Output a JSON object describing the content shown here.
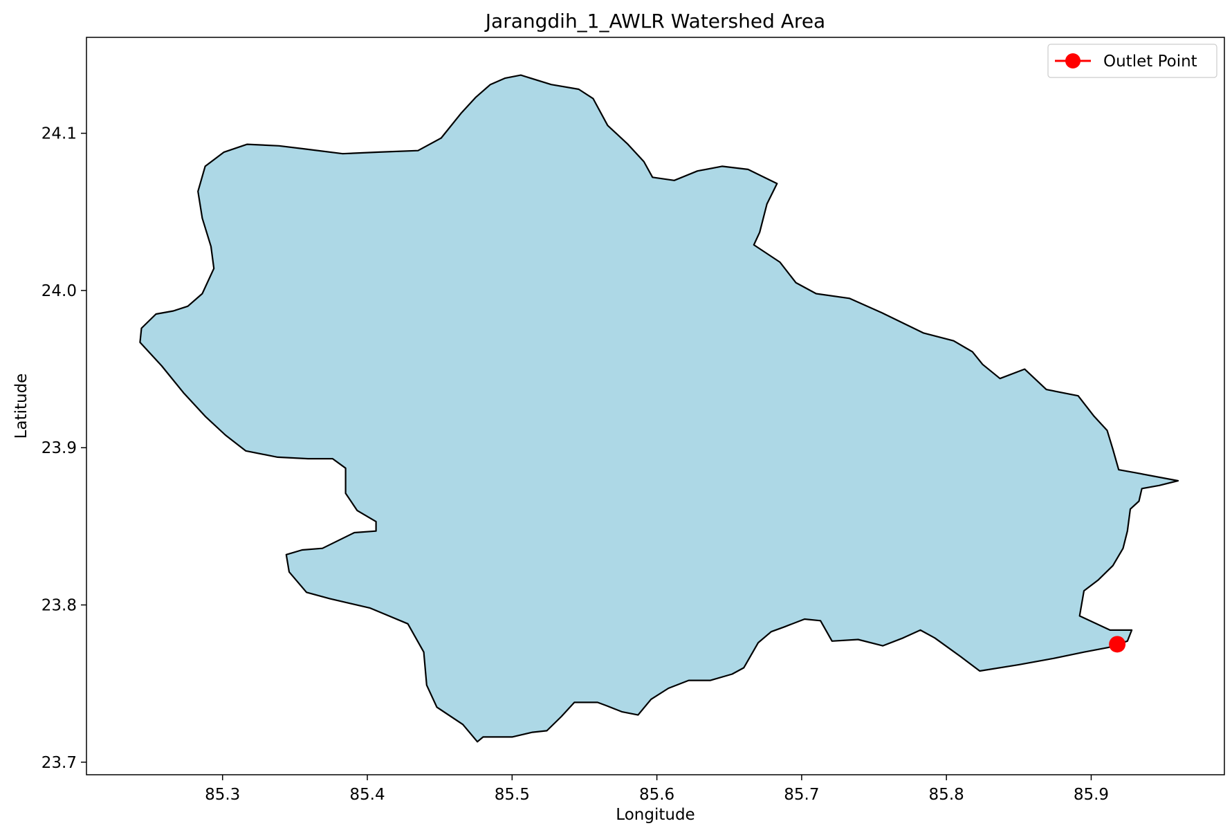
{
  "chart_data": {
    "type": "map",
    "title": "Jarangdih_1_AWLR Watershed Area",
    "xlabel": "Longitude",
    "ylabel": "Latitude",
    "xlim": [
      85.206,
      85.992
    ],
    "ylim": [
      23.692,
      24.161
    ],
    "xticks": [
      85.3,
      85.4,
      85.5,
      85.6,
      85.7,
      85.8,
      85.9
    ],
    "xtick_labels": [
      "85.3",
      "85.4",
      "85.5",
      "85.6",
      "85.7",
      "85.8",
      "85.9"
    ],
    "yticks": [
      23.7,
      23.8,
      23.9,
      24.0,
      24.1
    ],
    "ytick_labels": [
      "23.7",
      "23.8",
      "23.9",
      "24.0",
      "24.1"
    ],
    "grid": false,
    "legend_position": "top-right",
    "colors": {
      "watershed_fill": "#add8e6",
      "watershed_edge": "#000000",
      "outlet": "#ff0000"
    },
    "legend": [
      {
        "label": "Outlet Point",
        "marker": "circle",
        "color": "#ff0000"
      }
    ],
    "outlet_point": {
      "name": "Outlet Point",
      "lon": 85.918,
      "lat": 23.775
    },
    "watershed_boundary": [
      [
        85.506,
        24.137
      ],
      [
        85.527,
        24.131
      ],
      [
        85.546,
        24.128
      ],
      [
        85.556,
        24.122
      ],
      [
        85.566,
        24.105
      ],
      [
        85.58,
        24.093
      ],
      [
        85.591,
        24.082
      ],
      [
        85.597,
        24.072
      ],
      [
        85.612,
        24.07
      ],
      [
        85.628,
        24.076
      ],
      [
        85.645,
        24.079
      ],
      [
        85.663,
        24.077
      ],
      [
        85.683,
        24.068
      ],
      [
        85.676,
        24.055
      ],
      [
        85.671,
        24.037
      ],
      [
        85.667,
        24.029
      ],
      [
        85.685,
        24.018
      ],
      [
        85.696,
        24.005
      ],
      [
        85.71,
        23.998
      ],
      [
        85.733,
        23.995
      ],
      [
        85.755,
        23.986
      ],
      [
        85.784,
        23.973
      ],
      [
        85.805,
        23.968
      ],
      [
        85.818,
        23.961
      ],
      [
        85.825,
        23.953
      ],
      [
        85.837,
        23.944
      ],
      [
        85.854,
        23.95
      ],
      [
        85.869,
        23.937
      ],
      [
        85.891,
        23.933
      ],
      [
        85.902,
        23.92
      ],
      [
        85.911,
        23.911
      ],
      [
        85.915,
        23.899
      ],
      [
        85.919,
        23.886
      ],
      [
        85.931,
        23.884
      ],
      [
        85.96,
        23.879
      ],
      [
        85.947,
        23.876
      ],
      [
        85.935,
        23.874
      ],
      [
        85.933,
        23.866
      ],
      [
        85.927,
        23.861
      ],
      [
        85.925,
        23.847
      ],
      [
        85.922,
        23.836
      ],
      [
        85.915,
        23.825
      ],
      [
        85.905,
        23.816
      ],
      [
        85.895,
        23.809
      ],
      [
        85.892,
        23.793
      ],
      [
        85.913,
        23.784
      ],
      [
        85.928,
        23.784
      ],
      [
        85.925,
        23.777
      ],
      [
        85.912,
        23.773
      ],
      [
        85.895,
        23.77
      ],
      [
        85.874,
        23.766
      ],
      [
        85.85,
        23.762
      ],
      [
        85.823,
        23.758
      ],
      [
        85.81,
        23.767
      ],
      [
        85.792,
        23.779
      ],
      [
        85.782,
        23.784
      ],
      [
        85.77,
        23.779
      ],
      [
        85.756,
        23.774
      ],
      [
        85.739,
        23.778
      ],
      [
        85.721,
        23.777
      ],
      [
        85.713,
        23.79
      ],
      [
        85.702,
        23.791
      ],
      [
        85.688,
        23.786
      ],
      [
        85.679,
        23.783
      ],
      [
        85.67,
        23.776
      ],
      [
        85.66,
        23.76
      ],
      [
        85.652,
        23.756
      ],
      [
        85.637,
        23.752
      ],
      [
        85.622,
        23.752
      ],
      [
        85.608,
        23.747
      ],
      [
        85.596,
        23.74
      ],
      [
        85.587,
        23.73
      ],
      [
        85.576,
        23.732
      ],
      [
        85.565,
        23.736
      ],
      [
        85.559,
        23.738
      ],
      [
        85.543,
        23.738
      ],
      [
        85.534,
        23.729
      ],
      [
        85.524,
        23.72
      ],
      [
        85.514,
        23.719
      ],
      [
        85.5,
        23.716
      ],
      [
        85.489,
        23.716
      ],
      [
        85.48,
        23.716
      ],
      [
        85.476,
        23.713
      ],
      [
        85.466,
        23.724
      ],
      [
        85.448,
        23.735
      ],
      [
        85.441,
        23.749
      ],
      [
        85.439,
        23.77
      ],
      [
        85.428,
        23.788
      ],
      [
        85.402,
        23.798
      ],
      [
        85.374,
        23.804
      ],
      [
        85.358,
        23.808
      ],
      [
        85.346,
        23.821
      ],
      [
        85.344,
        23.832
      ],
      [
        85.355,
        23.835
      ],
      [
        85.369,
        23.836
      ],
      [
        85.38,
        23.841
      ],
      [
        85.391,
        23.846
      ],
      [
        85.406,
        23.847
      ],
      [
        85.406,
        23.853
      ],
      [
        85.393,
        23.86
      ],
      [
        85.385,
        23.871
      ],
      [
        85.385,
        23.887
      ],
      [
        85.376,
        23.893
      ],
      [
        85.359,
        23.893
      ],
      [
        85.338,
        23.894
      ],
      [
        85.316,
        23.898
      ],
      [
        85.302,
        23.908
      ],
      [
        85.288,
        23.92
      ],
      [
        85.273,
        23.935
      ],
      [
        85.258,
        23.952
      ],
      [
        85.243,
        23.967
      ],
      [
        85.244,
        23.976
      ],
      [
        85.254,
        23.985
      ],
      [
        85.266,
        23.987
      ],
      [
        85.276,
        23.99
      ],
      [
        85.286,
        23.998
      ],
      [
        85.294,
        24.014
      ],
      [
        85.292,
        24.028
      ],
      [
        85.286,
        24.046
      ],
      [
        85.283,
        24.063
      ],
      [
        85.288,
        24.079
      ],
      [
        85.301,
        24.088
      ],
      [
        85.317,
        24.093
      ],
      [
        85.339,
        24.092
      ],
      [
        85.357,
        24.09
      ],
      [
        85.383,
        24.087
      ],
      [
        85.408,
        24.088
      ],
      [
        85.435,
        24.089
      ],
      [
        85.451,
        24.097
      ],
      [
        85.465,
        24.113
      ],
      [
        85.475,
        24.123
      ],
      [
        85.485,
        24.131
      ],
      [
        85.495,
        24.135
      ]
    ]
  }
}
